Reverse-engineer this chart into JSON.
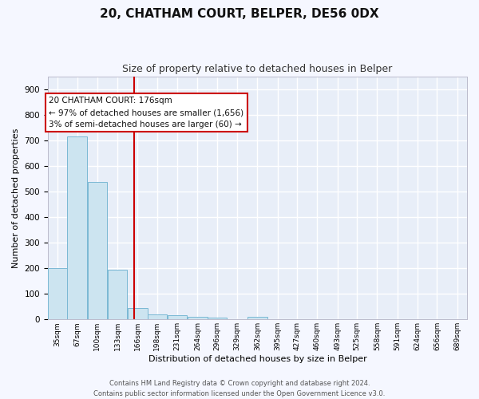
{
  "title1": "20, CHATHAM COURT, BELPER, DE56 0DX",
  "title2": "Size of property relative to detached houses in Belper",
  "xlabel": "Distribution of detached houses by size in Belper",
  "ylabel": "Number of detached properties",
  "bins": [
    35,
    67,
    100,
    133,
    166,
    198,
    231,
    264,
    296,
    329,
    362,
    395,
    427,
    460,
    493,
    525,
    558,
    591,
    624,
    656,
    689
  ],
  "counts": [
    200,
    716,
    538,
    193,
    44,
    20,
    15,
    11,
    8,
    0,
    9,
    0,
    0,
    0,
    0,
    0,
    0,
    0,
    0,
    0,
    0
  ],
  "bar_color": "#cce4f0",
  "bar_edge_color": "#7ab8d4",
  "bg_color": "#e8eef8",
  "grid_color": "#ffffff",
  "red_line_x": 176,
  "ylim": [
    0,
    950
  ],
  "yticks": [
    0,
    100,
    200,
    300,
    400,
    500,
    600,
    700,
    800,
    900
  ],
  "annotation_line1": "20 CHATHAM COURT: 176sqm",
  "annotation_line2": "← 97% of detached houses are smaller (1,656)",
  "annotation_line3": "3% of semi-detached houses are larger (60) →",
  "annotation_box_color": "#ffffff",
  "annotation_border_color": "#cc0000",
  "footer1": "Contains HM Land Registry data © Crown copyright and database right 2024.",
  "footer2": "Contains public sector information licensed under the Open Government Licence v3.0.",
  "title1_fontsize": 11,
  "title2_fontsize": 9,
  "ylabel_fontsize": 8,
  "xlabel_fontsize": 8
}
